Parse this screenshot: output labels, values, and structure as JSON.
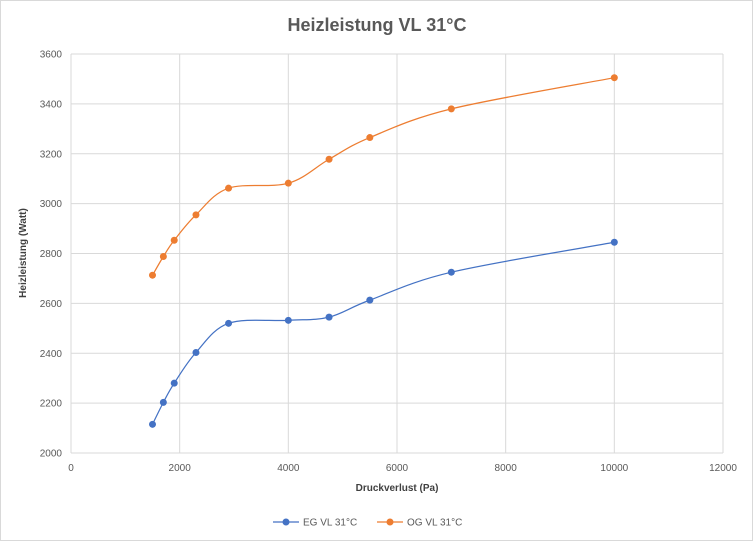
{
  "chart_data": {
    "type": "scatter",
    "title": "Heizleistung  VL 31°C",
    "xlabel": "Druckverlust (Pa)",
    "ylabel": "Heizleistung (Watt)",
    "xlim": [
      0,
      12000
    ],
    "ylim": [
      2000,
      3600
    ],
    "x_ticks": [
      0,
      2000,
      4000,
      6000,
      8000,
      10000,
      12000
    ],
    "y_ticks": [
      2000,
      2200,
      2400,
      2600,
      2800,
      3000,
      3200,
      3400,
      3600
    ],
    "grid": true,
    "smooth_lines": true,
    "legend_position": "bottom",
    "series": [
      {
        "name": "EG VL 31°C",
        "color": "#4472c4",
        "points": [
          [
            1500,
            2115
          ],
          [
            1700,
            2203
          ],
          [
            1900,
            2280
          ],
          [
            2300,
            2403
          ],
          [
            2900,
            2520
          ],
          [
            4000,
            2532
          ],
          [
            4750,
            2545
          ],
          [
            5500,
            2613
          ],
          [
            7000,
            2725
          ],
          [
            10000,
            2845
          ]
        ]
      },
      {
        "name": "OG VL 31°C",
        "color": "#ed7d31",
        "points": [
          [
            1500,
            2713
          ],
          [
            1700,
            2788
          ],
          [
            1900,
            2853
          ],
          [
            2300,
            2955
          ],
          [
            2900,
            3062
          ],
          [
            4000,
            3082
          ],
          [
            4750,
            3178
          ],
          [
            5500,
            3265
          ],
          [
            7000,
            3380
          ],
          [
            10000,
            3505
          ]
        ]
      }
    ]
  }
}
